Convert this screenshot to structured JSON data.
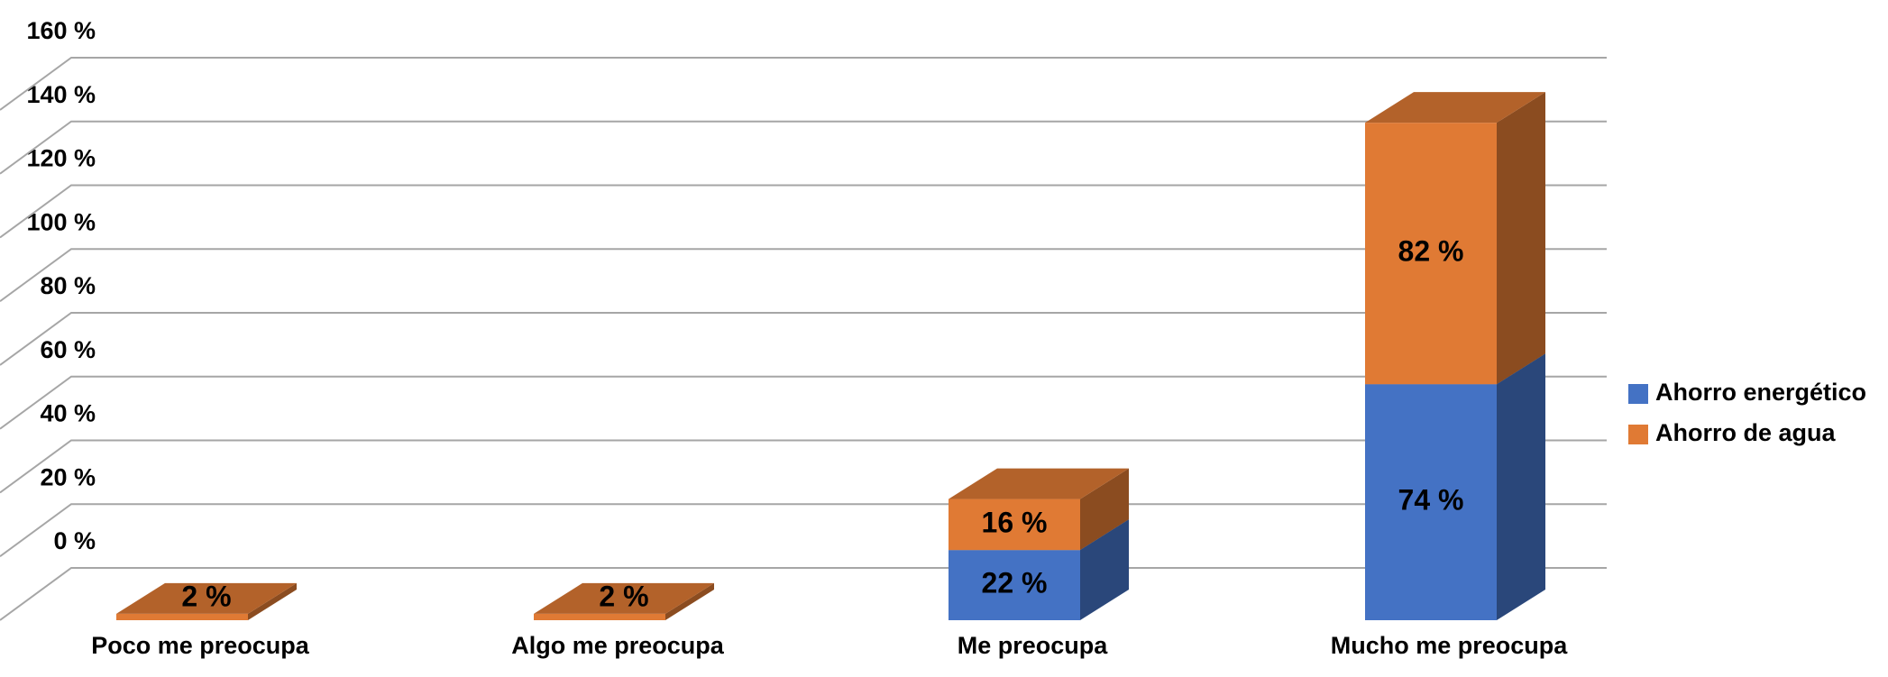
{
  "chart_data": {
    "type": "bar3d_stacked",
    "categories": [
      "Poco me preocupa",
      "Algo me preocupa",
      "Me preocupa",
      "Mucho me preocupa"
    ],
    "series": [
      {
        "name": "Ahorro energético",
        "color": "#4472c4",
        "values": [
          null,
          null,
          22,
          74
        ],
        "value_labels": [
          null,
          null,
          "22 %",
          "74 %"
        ]
      },
      {
        "name": "Ahorro de agua",
        "color": "#e07a34",
        "values": [
          2,
          2,
          16,
          82
        ],
        "value_labels": [
          "2 %",
          "2 %",
          "16 %",
          "82 %"
        ]
      }
    ],
    "ylim": [
      0,
      160
    ],
    "yticks": [
      {
        "value": 0,
        "label": "0 %"
      },
      {
        "value": 20,
        "label": "20 %"
      },
      {
        "value": 40,
        "label": "40 %"
      },
      {
        "value": 60,
        "label": "60 %"
      },
      {
        "value": 80,
        "label": "80 %"
      },
      {
        "value": 100,
        "label": "100 %"
      },
      {
        "value": 120,
        "label": "120 %"
      },
      {
        "value": 140,
        "label": "140 %"
      },
      {
        "value": 160,
        "label": "160 %"
      }
    ],
    "grid": true,
    "legend": "right"
  }
}
